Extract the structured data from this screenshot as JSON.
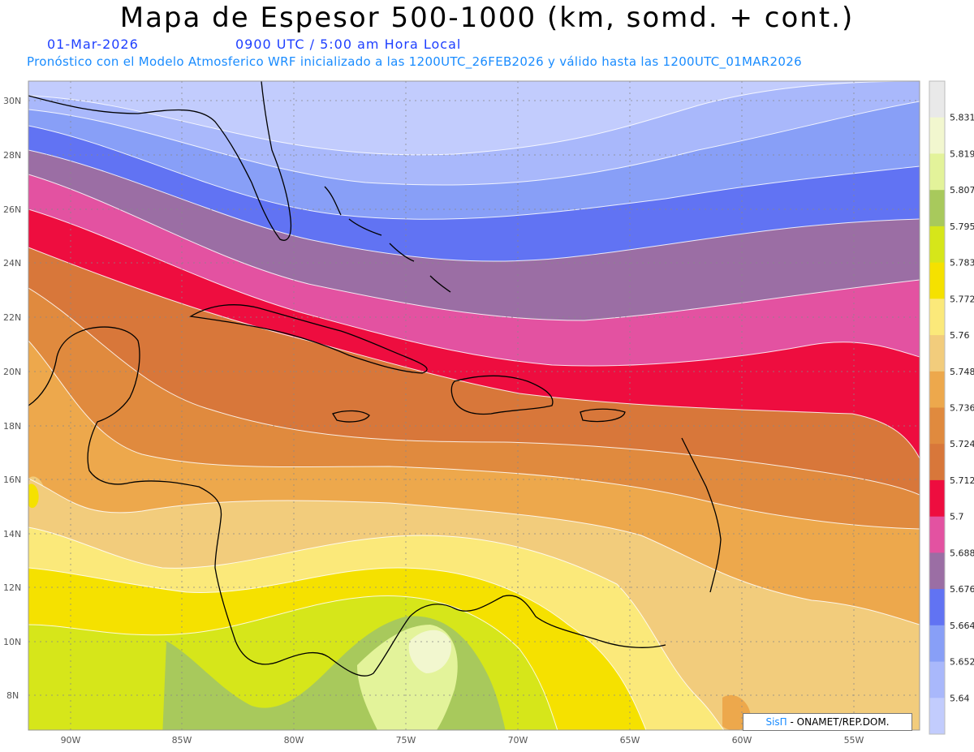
{
  "header": {
    "title": "Mapa de Espesor 500-1000 (km, somd. + cont.)",
    "date": "01-Mar-2026",
    "time": "0900 UTC / 5:00 am Hora Local",
    "description": "Pronóstico con el Modelo Atmosferico WRF inicializado a las 1200UTC_26FEB2026 y válido hasta las  1200UTC_01MAR2026"
  },
  "axes": {
    "lat_labels": [
      "30N",
      "28N",
      "26N",
      "24N",
      "22N",
      "20N",
      "18N",
      "16N",
      "14N",
      "12N",
      "10N",
      "8N"
    ],
    "lon_labels": [
      "90W",
      "85W",
      "80W",
      "75W",
      "70W",
      "65W",
      "60W",
      "55W"
    ]
  },
  "colorbar": {
    "labels": [
      "5.831",
      "5.819",
      "5.807",
      "5.795",
      "5.783",
      "5.772",
      "5.76",
      "5.748",
      "5.736",
      "5.724",
      "5.712",
      "5.7",
      "5.688",
      "5.676",
      "5.664",
      "5.652",
      "5.64"
    ],
    "colors": [
      "#e9e9e9",
      "#f2f7cf",
      "#e3f39a",
      "#a8c95c",
      "#d6e61a",
      "#f5e100",
      "#fbe97a",
      "#f2cc7c",
      "#eda84c",
      "#e08a3e",
      "#d8773a",
      "#ee0d3f",
      "#e352a1",
      "#9b6ea4",
      "#6173f3",
      "#889ff7",
      "#a9b8fb",
      "#c2ccfd"
    ]
  },
  "credit": {
    "brand": "SisΠ",
    "text": " - ONAMET/REP.DOM."
  }
}
